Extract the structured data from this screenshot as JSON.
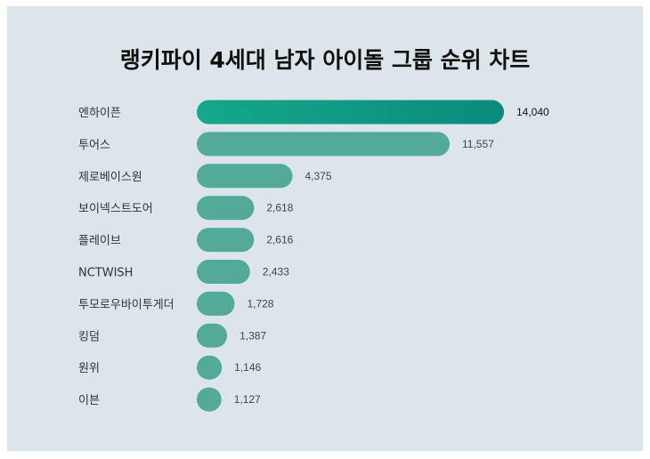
{
  "chart_data": {
    "type": "bar",
    "orientation": "horizontal",
    "title": "랭키파이 4세대 남자 아이돌 그룹 순위 차트",
    "categories": [
      "엔하이픈",
      "투어스",
      "제로베이스원",
      "보이넥스트도어",
      "플레이브",
      "NCTWISH",
      "투모로우바이투게더",
      "킹덤",
      "원위",
      "이븐"
    ],
    "values": [
      14040,
      11557,
      4375,
      2618,
      2616,
      2433,
      1728,
      1387,
      1146,
      1127
    ],
    "value_labels": [
      "14,040",
      "11,557",
      "4,375",
      "2,618",
      "2,616",
      "2,433",
      "1,728",
      "1,387",
      "1,146",
      "1,127"
    ],
    "xlabel": "",
    "ylabel": "",
    "xlim": [
      0,
      14040
    ],
    "grid": false,
    "legend": "none",
    "colors": {
      "bar": "#53aa99",
      "top_bar_start": "#15a88a",
      "top_bar_end": "#0a8a7e",
      "background": "#dce5e9"
    }
  }
}
